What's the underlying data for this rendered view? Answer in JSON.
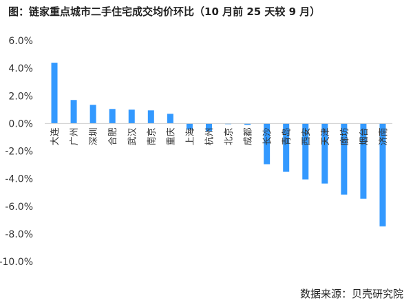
{
  "title": "图：链家重点城市二手住宅成交均价环比（10 月前 25 天较 9 月）",
  "source": "数据来源：贝壳研究院",
  "colors": {
    "bar": "#3399ff",
    "axis": "#d0d0d0",
    "text": "#333333"
  },
  "chart_data": {
    "type": "bar",
    "title": "图：链家重点城市二手住宅成交均价环比（10 月前 25 天较 9 月）",
    "categories": [
      "大连",
      "广州",
      "深圳",
      "合肥",
      "武汉",
      "南京",
      "重庆",
      "上海",
      "杭州",
      "北京",
      "成都",
      "长沙",
      "青岛",
      "西安",
      "天津",
      "廊坊",
      "烟台",
      "济南"
    ],
    "values": [
      4.4,
      1.7,
      1.35,
      1.05,
      1.0,
      0.95,
      0.7,
      -0.45,
      -0.55,
      -0.05,
      -0.1,
      -2.95,
      -3.5,
      -4.05,
      -4.35,
      -5.15,
      -5.45,
      -7.45
    ],
    "ylim": [
      -10,
      6
    ],
    "yticks": [
      "6.0%",
      "4.0%",
      "2.0%",
      "0.0%",
      "-2.0%",
      "-4.0%",
      "-6.0%",
      "-8.0%",
      "-10.0%"
    ],
    "ytick_values": [
      6,
      4,
      2,
      0,
      -2,
      -4,
      -6,
      -8,
      -10
    ],
    "xlabel": "",
    "ylabel": "",
    "grid": false,
    "legend": "none"
  }
}
